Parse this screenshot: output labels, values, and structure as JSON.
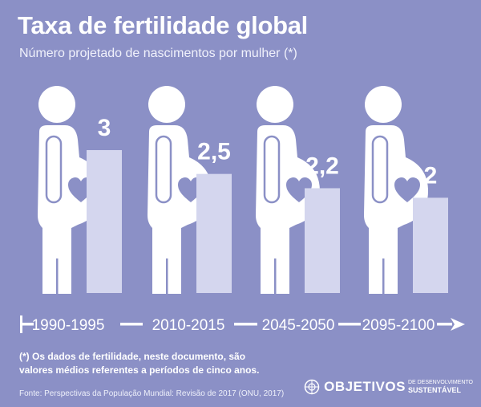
{
  "header": {
    "title": "Taxa de fertilidade global",
    "subtitle": "Número projetado de nascimentos por mulher (*)"
  },
  "chart_data": {
    "type": "bar",
    "categories": [
      "1990-1995",
      "2010-2015",
      "2045-2050",
      "2095-2100"
    ],
    "values": [
      3,
      2.5,
      2.2,
      2
    ],
    "value_labels": [
      "3",
      "2,5",
      "2,2",
      "2"
    ],
    "ylim": [
      0,
      3
    ],
    "grid": false,
    "icon": "pregnant-woman-with-heart-icon",
    "colors": {
      "background": "#8b90c6",
      "bar": "#d4d6ee",
      "figure": "#ffffff"
    }
  },
  "footnote": "(*) Os dados de fertilidade, neste documento, são valores médios referentes a períodos de cinco anos.",
  "source": "Fonte: Perspectivas da População Mundial: Revisão de 2017 (ONU, 2017)",
  "brand": {
    "main": "OBJETIVOS",
    "line1": "DE DESENVOLVIMENTO",
    "line2": "SUSTENTÁVEL"
  }
}
